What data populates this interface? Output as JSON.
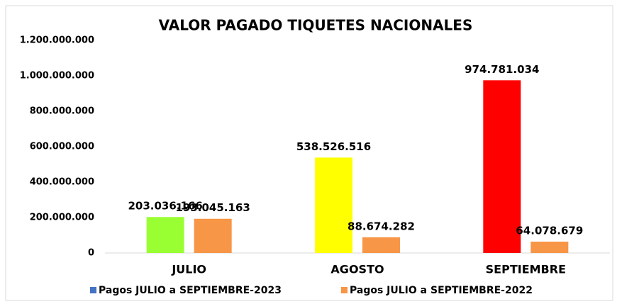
{
  "chart_data": {
    "type": "bar",
    "title": "VALOR PAGADO TIQUETES NACIONALES",
    "categories": [
      "JULIO",
      "AGOSTO",
      "SEPTIEMBRE"
    ],
    "series": [
      {
        "name": "Pagos JULIO a SEPTIEMBRE-2023",
        "color": "#4472c4",
        "colors": [
          "#99ff33",
          "#ffff00",
          "#ff0000"
        ],
        "values": [
          203036166,
          538526516,
          974781034
        ],
        "value_labels": [
          "203.036.166",
          "538.526.516",
          "974.781.034"
        ]
      },
      {
        "name": "Pagos JULIO a SEPTIEMBRE-2022",
        "color": "#f79646",
        "values": [
          193045163,
          88674282,
          64078679
        ],
        "value_labels": [
          "193.045.163",
          "88.674.282",
          "64.078.679"
        ]
      }
    ],
    "ylim": [
      0,
      1200000000
    ],
    "yticks": [
      0,
      {
        "value": 200000000,
        "label": "200.000.000"
      },
      {
        "value": 400000000,
        "label": "400.000.000"
      },
      {
        "value": 600000000,
        "label": "600.000.000"
      },
      {
        "value": 800000000,
        "label": "800.000.000"
      },
      {
        "value": 1000000000,
        "label": "1.000.000.000"
      },
      {
        "value": 1200000000,
        "label": "1.200.000.000"
      }
    ],
    "grid": false,
    "legend": "bottom"
  }
}
